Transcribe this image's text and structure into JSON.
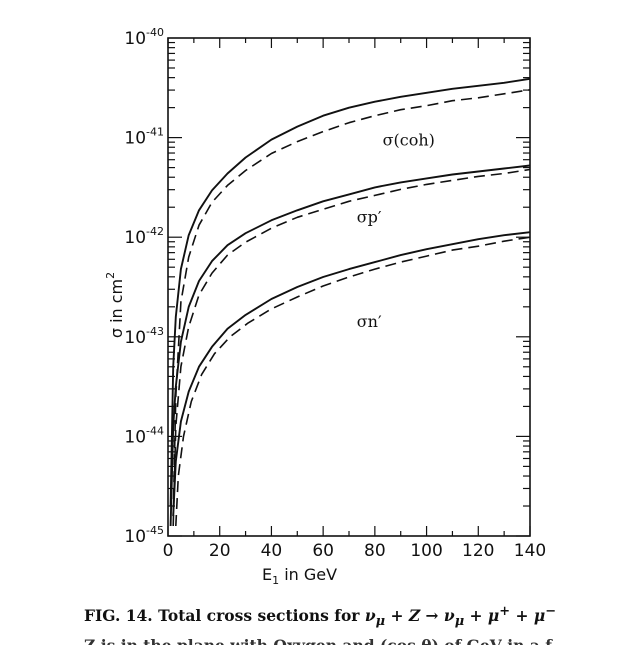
{
  "chart_data": {
    "type": "line",
    "title": "",
    "xlabel": "E",
    "xlabel_sub": "1",
    "xlabel_suffix": " in GeV",
    "ylabel": "σ  in cm",
    "ylabel_sup": "2",
    "xlim": [
      0,
      140
    ],
    "ylim_log10": [
      -45,
      -40
    ],
    "y_scale": "log",
    "x_ticks": [
      "0",
      "20",
      "40",
      "60",
      "80",
      "100",
      "120",
      "140"
    ],
    "y_ticks": [
      {
        "base": "10",
        "exp": "-40"
      },
      {
        "base": "10",
        "exp": "-41"
      },
      {
        "base": "10",
        "exp": "-42"
      },
      {
        "base": "10",
        "exp": "-43"
      },
      {
        "base": "10",
        "exp": "-44"
      },
      {
        "base": "10",
        "exp": "-45"
      }
    ],
    "series": [
      {
        "label": "σ(coh)",
        "style": "solid",
        "x": [
          1,
          2,
          3,
          5,
          8,
          12,
          17,
          23,
          30,
          40,
          50,
          60,
          70,
          80,
          90,
          100,
          110,
          120,
          130,
          140
        ],
        "log10_y": [
          -44.7,
          -43.3,
          -42.8,
          -42.32,
          -41.98,
          -41.73,
          -41.53,
          -41.36,
          -41.2,
          -41.02,
          -40.89,
          -40.78,
          -40.7,
          -40.64,
          -40.59,
          -40.55,
          -40.51,
          -40.48,
          -40.45,
          -40.41
        ]
      },
      {
        "label": "",
        "style": "dashed",
        "x": [
          2,
          3,
          5,
          8,
          12,
          17,
          23,
          30,
          40,
          50,
          60,
          70,
          80,
          90,
          100,
          110,
          120,
          130,
          140
        ],
        "log10_y": [
          -44.8,
          -43.6,
          -42.65,
          -42.2,
          -41.88,
          -41.65,
          -41.48,
          -41.33,
          -41.16,
          -41.04,
          -40.94,
          -40.85,
          -40.78,
          -40.72,
          -40.68,
          -40.63,
          -40.6,
          -40.56,
          -40.52
        ]
      },
      {
        "label": "σp′",
        "style": "solid",
        "x": [
          1,
          2,
          3,
          5,
          8,
          12,
          17,
          23,
          30,
          40,
          50,
          60,
          70,
          80,
          90,
          100,
          110,
          120,
          130,
          140
        ],
        "log10_y": [
          -44.9,
          -43.9,
          -43.5,
          -43.05,
          -42.7,
          -42.44,
          -42.24,
          -42.08,
          -41.96,
          -41.83,
          -41.73,
          -41.64,
          -41.57,
          -41.5,
          -41.45,
          -41.41,
          -41.37,
          -41.34,
          -41.31,
          -41.28
        ]
      },
      {
        "label": "",
        "style": "dashed",
        "x": [
          2,
          3,
          5,
          8,
          12,
          17,
          23,
          30,
          40,
          50,
          60,
          70,
          80,
          90,
          100,
          110,
          120,
          130,
          140
        ],
        "log10_y": [
          -44.9,
          -43.9,
          -43.3,
          -42.9,
          -42.58,
          -42.36,
          -42.18,
          -42.05,
          -41.91,
          -41.8,
          -41.72,
          -41.64,
          -41.58,
          -41.52,
          -41.47,
          -41.43,
          -41.39,
          -41.36,
          -41.32
        ]
      },
      {
        "label": "σn′",
        "style": "solid",
        "x": [
          2,
          3,
          5,
          8,
          12,
          17,
          23,
          30,
          40,
          50,
          60,
          70,
          80,
          90,
          100,
          110,
          120,
          130,
          140
        ],
        "log10_y": [
          -44.8,
          -44.25,
          -43.85,
          -43.55,
          -43.3,
          -43.1,
          -42.92,
          -42.78,
          -42.62,
          -42.5,
          -42.4,
          -42.32,
          -42.25,
          -42.18,
          -42.12,
          -42.07,
          -42.02,
          -41.98,
          -41.95
        ]
      },
      {
        "label": "",
        "style": "dashed",
        "x": [
          3,
          4,
          6,
          9,
          13,
          18,
          24,
          31,
          40,
          50,
          60,
          70,
          80,
          90,
          100,
          110,
          120,
          130,
          140
        ],
        "log10_y": [
          -44.9,
          -44.4,
          -44.0,
          -43.65,
          -43.38,
          -43.17,
          -43.0,
          -42.86,
          -42.72,
          -42.6,
          -42.49,
          -42.4,
          -42.32,
          -42.25,
          -42.19,
          -42.13,
          -42.09,
          -42.04,
          -42.0
        ]
      }
    ]
  },
  "caption": {
    "line1_prefix": "FIG. 14.  Total cross sections for ",
    "line1_formula": "ν",
    "line1_formula_sub": "μ",
    "line1_formula_rest": " + Z → ν",
    "line1_formula_sub2": "μ",
    "line1_formula_rest2": " + μ",
    "line1_sup1": "+",
    "line1_formula_rest3": " + μ",
    "line1_sup2": "−",
    "line2": "Z is in the plane with Oxygen and (cos θ) of GeV  in  a  f"
  }
}
